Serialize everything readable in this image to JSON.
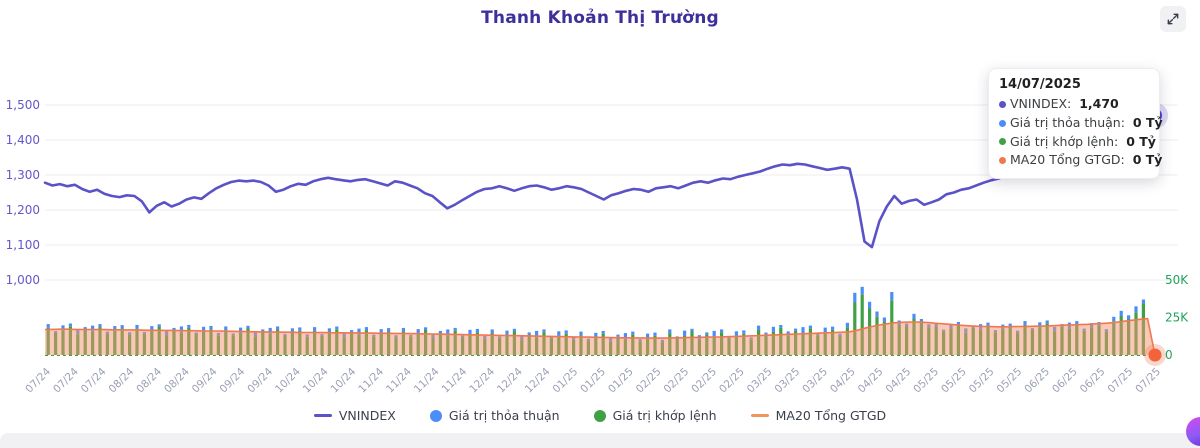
{
  "header": {
    "title": "Thanh Khoản Thị Trường"
  },
  "icons": {
    "expand": "expand-icon",
    "fab": "assistant-fab"
  },
  "tooltip": {
    "date": "14/07/2025",
    "items": [
      {
        "label": "VNINDEX",
        "value": "1,470",
        "suffix": "",
        "color": "#5a52c7"
      },
      {
        "label": "Giá trị thỏa thuận",
        "value": "0 Tỷ",
        "suffix": "",
        "color": "#4c8ef7"
      },
      {
        "label": "Giá trị khớp lệnh",
        "value": "0 Tỷ",
        "suffix": "",
        "color": "#3fa046"
      },
      {
        "label": "MA20 Tổng GTGD",
        "value": "0 Tỷ",
        "suffix": "",
        "color": "#f0784e"
      }
    ]
  },
  "legend": [
    {
      "label": "VNINDEX",
      "swatch": "line",
      "color": "#5a52c7"
    },
    {
      "label": "Giá trị thỏa thuận",
      "swatch": "dot",
      "color": "#4c8ef7"
    },
    {
      "label": "Giá trị khớp lệnh",
      "swatch": "dot",
      "color": "#3fa046"
    },
    {
      "label": "MA20 Tổng GTGD",
      "swatch": "line",
      "color": "#f0945e"
    }
  ],
  "chart_data": {
    "type": "line+stacked-bar+area",
    "title": "Thanh Khoản Thị Trường",
    "left_axis": {
      "tick_labels": [
        "1,500",
        "1,400",
        "1,300",
        "1,200",
        "1,100",
        "1,000"
      ],
      "tick_values": [
        1500,
        1400,
        1300,
        1200,
        1100,
        1000
      ],
      "range": [
        1000,
        1500
      ],
      "color": "#6458c9"
    },
    "right_axis": {
      "tick_labels": [
        "50K",
        "25K",
        "0"
      ],
      "tick_values": [
        50,
        25,
        0
      ],
      "range": [
        0,
        50
      ],
      "unit": "K Tỷ",
      "color": "#21a35c"
    },
    "x_tick_labels": [
      "07/24",
      "07/24",
      "07/24",
      "08/24",
      "08/24",
      "08/24",
      "09/24",
      "09/24",
      "09/24",
      "10/24",
      "10/24",
      "10/24",
      "11/24",
      "11/24",
      "11/24",
      "11/24",
      "12/24",
      "12/24",
      "12/24",
      "01/25",
      "01/25",
      "01/25",
      "02/25",
      "02/25",
      "02/25",
      "02/25",
      "03/25",
      "03/25",
      "03/25",
      "04/25",
      "04/25",
      "04/25",
      "05/25",
      "05/25",
      "05/25",
      "05/25",
      "06/25",
      "06/25",
      "06/25",
      "07/25",
      "07/25"
    ],
    "grid": true,
    "legend_position": "bottom",
    "colors": {
      "vnindex": "#5a52c7",
      "vnindex_dot": "#4c46b8",
      "blue_bar": "#4c8ef7",
      "green_bar": "#3fa046",
      "ma20_line": "#f0784e",
      "ma20_fill": "rgba(243,146,111,0.5)",
      "gridline": "#ececf1",
      "x_label": "#9aa0b4",
      "zero_line": "#3fa046",
      "ma20_dot": "#f2633a"
    },
    "series": [
      {
        "name": "VNINDEX",
        "type": "line",
        "axis": "left",
        "color": "#5a52c7",
        "values": [
          1278,
          1270,
          1274,
          1268,
          1272,
          1260,
          1252,
          1258,
          1246,
          1240,
          1237,
          1242,
          1240,
          1225,
          1193,
          1212,
          1222,
          1210,
          1218,
          1230,
          1236,
          1232,
          1248,
          1262,
          1272,
          1280,
          1284,
          1282,
          1284,
          1280,
          1270,
          1252,
          1258,
          1268,
          1275,
          1272,
          1282,
          1288,
          1292,
          1288,
          1285,
          1282,
          1286,
          1288,
          1282,
          1276,
          1270,
          1282,
          1278,
          1270,
          1262,
          1248,
          1240,
          1222,
          1205,
          1215,
          1228,
          1240,
          1252,
          1260,
          1262,
          1268,
          1262,
          1255,
          1262,
          1268,
          1270,
          1265,
          1258,
          1262,
          1268,
          1265,
          1260,
          1250,
          1240,
          1230,
          1242,
          1248,
          1255,
          1260,
          1258,
          1252,
          1262,
          1265,
          1268,
          1262,
          1270,
          1278,
          1282,
          1278,
          1285,
          1290,
          1288,
          1295,
          1300,
          1305,
          1310,
          1318,
          1325,
          1330,
          1328,
          1332,
          1330,
          1325,
          1320,
          1315,
          1318,
          1322,
          1318,
          1230,
          1110,
          1094,
          1168,
          1210,
          1240,
          1218,
          1226,
          1230,
          1215,
          1222,
          1230,
          1245,
          1250,
          1258,
          1262,
          1270,
          1278,
          1285,
          1290,
          1298,
          1305,
          1310,
          1315,
          1320,
          1318,
          1325,
          1332,
          1340,
          1345,
          1342,
          1350,
          1355,
          1360,
          1370,
          1382,
          1395,
          1410,
          1425,
          1445,
          1470
        ]
      },
      {
        "name": "Giá trị khớp lệnh",
        "type": "bar",
        "axis": "right",
        "color": "#3fa046",
        "values": [
          18.1,
          14.7,
          16.4,
          19.2,
          13.8,
          17.1,
          15.4,
          18.6,
          14.2,
          16.3,
          17.7,
          13.6,
          17.6,
          14.2,
          15.9,
          18.7,
          13.3,
          16.6,
          14.9,
          18.1,
          13.7,
          15.8,
          17.2,
          13.1,
          16.6,
          13.2,
          14.9,
          17.7,
          12.3,
          15.6,
          13.9,
          17.1,
          12.7,
          14.8,
          16.2,
          12.1,
          16.1,
          12.7,
          14.4,
          17.2,
          11.8,
          15.1,
          13.4,
          16.6,
          12.2,
          14.3,
          15.7,
          11.6,
          15.6,
          12.2,
          13.9,
          16.7,
          11.3,
          14.6,
          12.9,
          16.1,
          11.7,
          13.8,
          15.2,
          11.1,
          14.6,
          11.2,
          12.9,
          15.7,
          10.3,
          13.6,
          11.9,
          15.1,
          10.7,
          12.8,
          14.2,
          10.1,
          13.1,
          9.7,
          11.4,
          14.2,
          8.8,
          12.1,
          10.4,
          13.6,
          9.2,
          11.3,
          12.7,
          8.6,
          14.6,
          11.2,
          12.9,
          15.7,
          10.3,
          13.6,
          11.9,
          15.1,
          10.7,
          12.8,
          14.2,
          10.1,
          17.1,
          13.7,
          15.4,
          18.2,
          12.8,
          16.1,
          14.4,
          17.6,
          13.2,
          15.3,
          16.7,
          12.6,
          18.5,
          35.0,
          40.5,
          31.0,
          25.5,
          22.0,
          36.5,
          20.5,
          19.0,
          24.0,
          21.5,
          18.5,
          19.1,
          15.7,
          17.4,
          20.2,
          14.8,
          18.1,
          16.4,
          19.6,
          15.2,
          17.3,
          18.7,
          14.6,
          20.1,
          16.7,
          18.4,
          21.2,
          15.8,
          19.1,
          17.4,
          20.6,
          16.2,
          18.3,
          19.7,
          15.6,
          22.5,
          26.0,
          24.0,
          28.5,
          34.0,
          0
        ]
      },
      {
        "name": "Giá trị thỏa thuận",
        "type": "bar-stacked",
        "axis": "right",
        "color": "#4c8ef7",
        "values": [
          2.5,
          1.2,
          3.4,
          1.8,
          2.9,
          1.5,
          4.2,
          2.0,
          1.4,
          3.0,
          2.2,
          1.6,
          2.5,
          1.2,
          3.4,
          1.8,
          2.9,
          1.5,
          4.2,
          2.0,
          1.4,
          3.0,
          2.2,
          1.6,
          2.5,
          1.2,
          3.4,
          1.8,
          2.9,
          1.5,
          4.2,
          2.0,
          1.4,
          3.0,
          2.2,
          1.6,
          2.5,
          1.2,
          3.4,
          1.8,
          2.9,
          1.5,
          4.2,
          2.0,
          1.4,
          3.0,
          2.2,
          1.6,
          2.5,
          1.2,
          3.4,
          1.8,
          2.9,
          1.5,
          4.2,
          2.0,
          1.4,
          3.0,
          2.2,
          1.6,
          2.5,
          1.2,
          3.4,
          1.8,
          2.9,
          1.5,
          4.2,
          2.0,
          1.4,
          3.0,
          2.2,
          1.6,
          2.5,
          1.2,
          3.4,
          1.8,
          2.9,
          1.5,
          4.2,
          2.0,
          1.4,
          3.0,
          2.2,
          1.6,
          2.5,
          1.2,
          3.4,
          1.8,
          2.9,
          1.5,
          4.2,
          2.0,
          1.4,
          3.0,
          2.2,
          1.6,
          2.5,
          1.2,
          3.4,
          1.8,
          2.9,
          1.5,
          4.2,
          2.0,
          1.4,
          3.0,
          2.2,
          1.6,
          3.0,
          6.5,
          5.0,
          4.5,
          3.5,
          3.0,
          5.5,
          2.5,
          2.0,
          3.5,
          2.5,
          2.0,
          2.5,
          1.2,
          3.4,
          1.8,
          2.9,
          1.5,
          4.2,
          2.0,
          1.4,
          3.0,
          2.2,
          1.6,
          2.5,
          1.2,
          3.4,
          1.8,
          2.9,
          1.5,
          4.2,
          2.0,
          1.4,
          3.0,
          2.2,
          1.6,
          3.0,
          3.5,
          2.5,
          4.0,
          3.0,
          0
        ]
      },
      {
        "name": "MA20 Tổng GTGD",
        "type": "area-line",
        "axis": "right",
        "color": "#f0784e",
        "values": [
          17.0,
          17.1,
          17.2,
          17.2,
          17.1,
          17.0,
          17.0,
          16.9,
          16.9,
          16.8,
          16.8,
          16.7,
          16.7,
          16.6,
          16.5,
          16.5,
          16.4,
          16.4,
          16.3,
          16.2,
          16.2,
          16.1,
          16.0,
          16.0,
          15.9,
          15.8,
          15.7,
          15.6,
          15.5,
          15.4,
          15.4,
          15.3,
          15.2,
          15.2,
          15.1,
          15.0,
          15.0,
          14.9,
          14.9,
          14.8,
          14.8,
          14.7,
          14.7,
          14.6,
          14.6,
          14.5,
          14.5,
          14.4,
          14.4,
          14.3,
          14.2,
          14.1,
          14.0,
          13.9,
          13.8,
          13.7,
          13.6,
          13.5,
          13.4,
          13.3,
          13.2,
          13.1,
          13.0,
          12.9,
          12.8,
          12.7,
          12.6,
          12.5,
          12.4,
          12.3,
          12.2,
          12.1,
          12.0,
          11.9,
          11.8,
          11.7,
          11.6,
          11.5,
          11.5,
          11.4,
          11.4,
          11.3,
          11.3,
          11.3,
          11.4,
          11.5,
          11.6,
          11.7,
          11.8,
          11.9,
          12.0,
          12.1,
          12.3,
          12.4,
          12.6,
          12.8,
          13.0,
          13.2,
          13.4,
          13.6,
          13.8,
          14.0,
          14.2,
          14.4,
          14.6,
          14.8,
          15.0,
          15.2,
          15.5,
          16.5,
          17.8,
          19.0,
          20.0,
          20.8,
          21.5,
          21.8,
          22.0,
          22.0,
          21.8,
          21.5,
          21.0,
          20.6,
          20.2,
          19.8,
          19.5,
          19.2,
          19.0,
          18.9,
          18.8,
          18.8,
          18.9,
          19.0,
          19.1,
          19.2,
          19.3,
          19.5,
          19.7,
          19.9,
          20.1,
          20.3,
          20.5,
          20.8,
          21.1,
          21.4,
          22.0,
          22.6,
          23.2,
          23.8,
          24.3,
          0
        ]
      }
    ],
    "highlight_last_point": true
  }
}
